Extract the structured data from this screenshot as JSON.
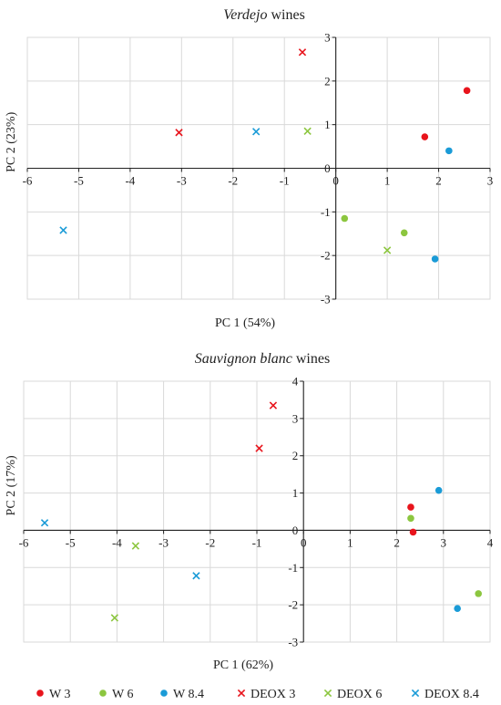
{
  "legend": [
    {
      "key": "w3",
      "label": "W 3",
      "color": "#e8141c",
      "marker": "circle"
    },
    {
      "key": "w6",
      "label": "W 6",
      "color": "#8cc63f",
      "marker": "circle"
    },
    {
      "key": "w84",
      "label": "W 8.4",
      "color": "#1a9bd7",
      "marker": "circle"
    },
    {
      "key": "deox3",
      "label": "DEOX 3",
      "color": "#e8141c",
      "marker": "x"
    },
    {
      "key": "deox6",
      "label": "DEOX 6",
      "color": "#8cc63f",
      "marker": "x"
    },
    {
      "key": "deox84",
      "label": "DEOX 8.4",
      "color": "#1a9bd7",
      "marker": "x"
    }
  ],
  "chart_data": [
    {
      "type": "scatter",
      "title_italic": "Verdejo",
      "title_rest": " wines",
      "xlabel": "PC 1 (54%)",
      "ylabel": "PC 2 (23%)",
      "xlim": [
        -6,
        3
      ],
      "ylim": [
        -3,
        3
      ],
      "xticks": [
        -6,
        -5,
        -4,
        -3,
        -2,
        -1,
        0,
        1,
        2,
        3
      ],
      "yticks": [
        -3,
        -2,
        -1,
        0,
        1,
        2,
        3
      ],
      "grid": true,
      "series": [
        {
          "key": "w3",
          "points": [
            [
              2.55,
              1.78
            ],
            [
              1.73,
              0.72
            ]
          ]
        },
        {
          "key": "w6",
          "points": [
            [
              0.17,
              -1.15
            ],
            [
              1.33,
              -1.48
            ]
          ]
        },
        {
          "key": "w84",
          "points": [
            [
              2.2,
              0.4
            ],
            [
              1.93,
              -2.08
            ]
          ]
        },
        {
          "key": "deox3",
          "points": [
            [
              -0.65,
              2.66
            ],
            [
              -3.05,
              0.82
            ]
          ]
        },
        {
          "key": "deox6",
          "points": [
            [
              -0.55,
              0.85
            ],
            [
              1.0,
              -1.88
            ]
          ]
        },
        {
          "key": "deox84",
          "points": [
            [
              -1.55,
              0.84
            ],
            [
              -5.3,
              -1.42
            ]
          ]
        }
      ]
    },
    {
      "type": "scatter",
      "title_italic": "Sauvignon blanc",
      "title_rest": " wines",
      "xlabel": "PC 1 (62%)",
      "ylabel": "PC 2 (17%)",
      "xlim": [
        -6,
        4
      ],
      "ylim": [
        -3,
        4
      ],
      "xticks": [
        -6,
        -5,
        -4,
        -3,
        -2,
        -1,
        0,
        1,
        2,
        3,
        4
      ],
      "yticks": [
        -3,
        -2,
        -1,
        0,
        1,
        2,
        3,
        4
      ],
      "grid": true,
      "series": [
        {
          "key": "w3",
          "points": [
            [
              2.3,
              0.62
            ],
            [
              2.35,
              -0.05
            ]
          ]
        },
        {
          "key": "w6",
          "points": [
            [
              2.3,
              0.32
            ],
            [
              3.75,
              -1.7
            ]
          ]
        },
        {
          "key": "w84",
          "points": [
            [
              2.9,
              1.07
            ],
            [
              3.3,
              -2.1
            ]
          ]
        },
        {
          "key": "deox3",
          "points": [
            [
              -0.65,
              3.35
            ],
            [
              -0.95,
              2.2
            ]
          ]
        },
        {
          "key": "deox6",
          "points": [
            [
              -3.6,
              -0.42
            ],
            [
              -4.05,
              -2.35
            ]
          ]
        },
        {
          "key": "deox84",
          "points": [
            [
              -5.55,
              0.2
            ],
            [
              -2.3,
              -1.22
            ]
          ]
        }
      ]
    }
  ]
}
